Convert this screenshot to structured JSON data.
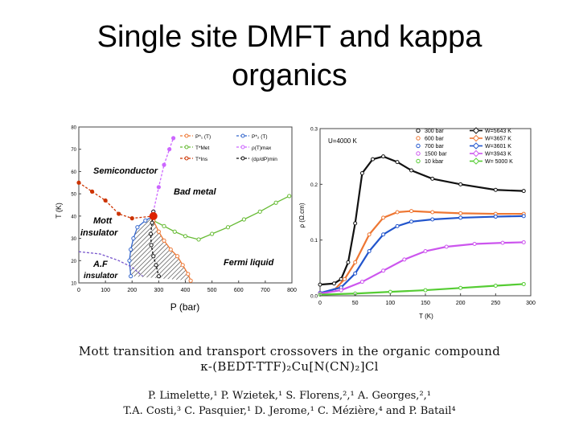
{
  "slide": {
    "title_line1": "Single site DMFT  and kappa",
    "title_line2": "organics"
  },
  "paper": {
    "title_line1": "Mott transition and transport crossovers in the organic compound",
    "formula": "κ-(BEDT-TTF)₂Cu[N(CN)₂]Cl",
    "authors_line1": "P. Limelette,¹ P. Wzietek,¹ S. Florens,²,¹ A. Georges,²,¹",
    "authors_line2": "T.A. Costi,³ C. Pasquier,¹ D. Jerome,¹ C. Mézière,⁴ and P. Batail⁴"
  },
  "chart_data": [
    {
      "type": "line",
      "xlabel": "P (bar)",
      "ylabel": "T (K)",
      "xlim": [
        0,
        800
      ],
      "ylim": [
        10,
        80
      ],
      "x_ticks": [
        "0",
        "100",
        "200",
        "300",
        "400",
        "500",
        "600",
        "700",
        "800"
      ],
      "y_ticks": [
        "10",
        "20",
        "30",
        "40",
        "50",
        "60",
        "70",
        "80"
      ],
      "legend": [
        "P*₁ (T)",
        "P*₂ (T)",
        "T*Met",
        "ρ(T)max",
        "T*Ins",
        "(dρ/dP)min"
      ],
      "region_labels": {
        "semiconductor": "Semiconductor",
        "bad_metal": "Bad metal",
        "mott_1": "Mott",
        "mott_2": "insulator",
        "fermi_liquid": "Fermi liquid",
        "af_1": "A.F",
        "af_2": "insulator"
      },
      "series": [
        {
          "name": "T*Met",
          "color": "#66bb33",
          "x": [
            280,
            320,
            360,
            400,
            450,
            500,
            560,
            620,
            680,
            740,
            790
          ],
          "y": [
            38,
            35.5,
            33,
            31,
            29.5,
            32,
            35,
            38.5,
            42,
            46,
            49
          ]
        },
        {
          "name": "ρ(T)max",
          "color": "#cc66ff",
          "x": [
            280,
            300,
            320,
            340,
            355
          ],
          "y": [
            42,
            53,
            63,
            70,
            75
          ]
        },
        {
          "name": "T*Ins",
          "color": "#cc3300",
          "x": [
            0,
            50,
            100,
            150,
            200,
            280
          ],
          "y": [
            55,
            51,
            47,
            41,
            39,
            40
          ]
        },
        {
          "name": "P*₁ (T)",
          "color": "#ee7733",
          "x": [
            280,
            300,
            320,
            345,
            370,
            390,
            410,
            420
          ],
          "y": [
            38,
            33,
            29,
            25,
            22,
            18,
            14,
            11
          ]
        },
        {
          "name": "P*₂ (T)",
          "color": "#3366cc",
          "x": [
            280,
            250,
            220,
            205,
            195,
            190,
            195
          ],
          "y": [
            40,
            38,
            35,
            30,
            25,
            20,
            13
          ]
        },
        {
          "name": "(dρ/dP)min",
          "color": "#111111",
          "x": [
            280,
            275,
            270,
            272,
            280,
            290,
            300
          ],
          "y": [
            42,
            37,
            32,
            27,
            22,
            18,
            13
          ]
        },
        {
          "name": "AF boundary",
          "color": "#7755cc",
          "x": [
            0,
            80,
            150,
            200,
            240
          ],
          "y": [
            24,
            23,
            20,
            17,
            13
          ]
        }
      ],
      "critical_point": {
        "x": 280,
        "y": 40,
        "color": "#dd2200"
      }
    },
    {
      "type": "line",
      "xlabel": "T (K)",
      "ylabel": "ρ (Ω.cm)",
      "xlim": [
        0,
        300
      ],
      "ylim": [
        0,
        0.3
      ],
      "x_ticks": [
        "0",
        "50",
        "100",
        "150",
        "200",
        "250",
        "300"
      ],
      "y_ticks": [
        "0.0",
        "0.1",
        "0.2",
        "0.3"
      ],
      "annotation": "U=4000 K",
      "legend_left": [
        "300 bar",
        "600 bar",
        "700 bar",
        "1500 bar",
        "10 kbar"
      ],
      "legend_right": [
        "W=5643 K",
        "W=3657 K",
        "W=3601 K",
        "W=3943 K",
        "W= 5000 K"
      ],
      "series": [
        {
          "name": "300 bar",
          "color": "#111111",
          "x": [
            0,
            20,
            30,
            40,
            50,
            60,
            75,
            90,
            110,
            130,
            160,
            200,
            250,
            290
          ],
          "y": [
            0.02,
            0.022,
            0.03,
            0.06,
            0.13,
            0.22,
            0.245,
            0.25,
            0.24,
            0.225,
            0.21,
            0.2,
            0.19,
            0.188
          ]
        },
        {
          "name": "600 bar",
          "color": "#ee7733",
          "x": [
            0,
            20,
            35,
            50,
            70,
            90,
            110,
            130,
            160,
            200,
            250,
            290
          ],
          "y": [
            0.005,
            0.01,
            0.03,
            0.06,
            0.11,
            0.14,
            0.15,
            0.152,
            0.15,
            0.148,
            0.147,
            0.147
          ]
        },
        {
          "name": "700 bar",
          "color": "#2255cc",
          "x": [
            0,
            30,
            50,
            70,
            90,
            110,
            130,
            160,
            200,
            250,
            290
          ],
          "y": [
            0.005,
            0.015,
            0.04,
            0.08,
            0.11,
            0.125,
            0.133,
            0.137,
            0.14,
            0.142,
            0.143
          ]
        },
        {
          "name": "1500 bar",
          "color": "#cc55ee",
          "x": [
            0,
            30,
            60,
            90,
            120,
            150,
            180,
            220,
            260,
            290
          ],
          "y": [
            0.004,
            0.01,
            0.025,
            0.045,
            0.065,
            0.08,
            0.088,
            0.093,
            0.095,
            0.096
          ]
        },
        {
          "name": "10 kbar",
          "color": "#55cc33",
          "x": [
            0,
            50,
            100,
            150,
            200,
            250,
            290
          ],
          "y": [
            0.002,
            0.004,
            0.007,
            0.01,
            0.014,
            0.018,
            0.021
          ]
        }
      ]
    }
  ]
}
